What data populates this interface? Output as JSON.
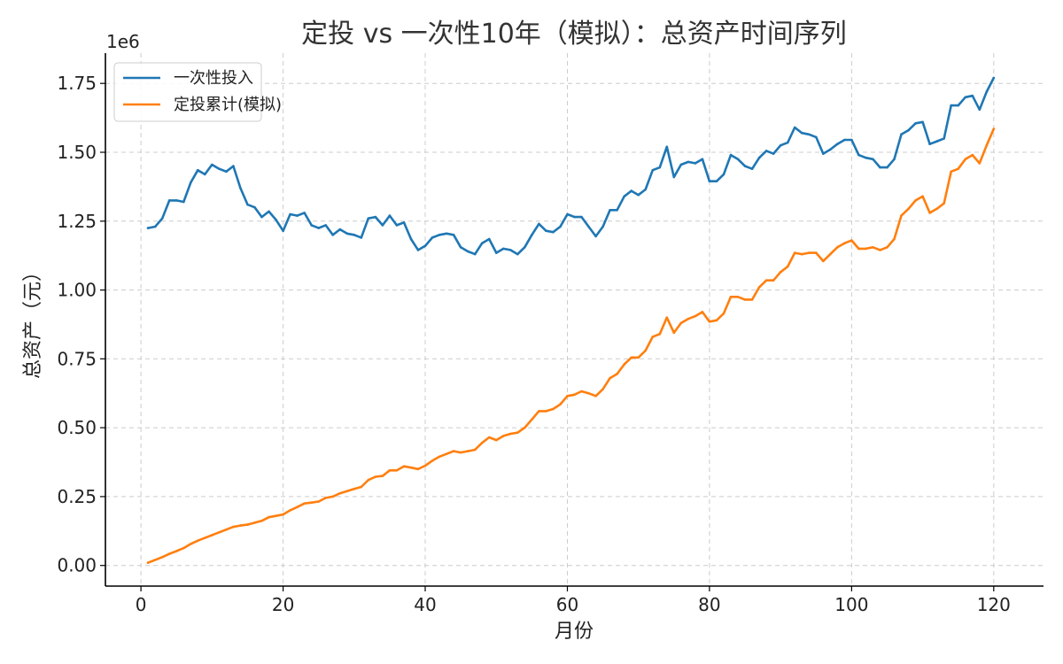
{
  "chart_data": {
    "type": "line",
    "title": "定投 vs 一次性10年（模拟）：总资产时间序列",
    "xlabel": "月份",
    "ylabel": "总资产（元）",
    "offset_text": "1e6",
    "xlim": [
      -5,
      127
    ],
    "ylim": [
      -0.075,
      1.86
    ],
    "xticks": [
      0,
      20,
      40,
      60,
      80,
      100,
      120
    ],
    "xtick_labels": [
      "0",
      "20",
      "40",
      "60",
      "80",
      "100",
      "120"
    ],
    "yticks": [
      0,
      0.25,
      0.5,
      0.75,
      1.0,
      1.25,
      1.5,
      1.75
    ],
    "ytick_labels": [
      "0.00",
      "0.25",
      "0.50",
      "0.75",
      "1.00",
      "1.25",
      "1.50",
      "1.75"
    ],
    "grid": true,
    "legend_position": "top-left",
    "x": [
      1,
      2,
      3,
      4,
      5,
      6,
      7,
      8,
      9,
      10,
      11,
      12,
      13,
      14,
      15,
      16,
      17,
      18,
      19,
      20,
      21,
      22,
      23,
      24,
      25,
      26,
      27,
      28,
      29,
      30,
      31,
      32,
      33,
      34,
      35,
      36,
      37,
      38,
      39,
      40,
      41,
      42,
      43,
      44,
      45,
      46,
      47,
      48,
      49,
      50,
      51,
      52,
      53,
      54,
      55,
      56,
      57,
      58,
      59,
      60,
      61,
      62,
      63,
      64,
      65,
      66,
      67,
      68,
      69,
      70,
      71,
      72,
      73,
      74,
      75,
      76,
      77,
      78,
      79,
      80,
      81,
      82,
      83,
      84,
      85,
      86,
      87,
      88,
      89,
      90,
      91,
      92,
      93,
      94,
      95,
      96,
      97,
      98,
      99,
      100,
      101,
      102,
      103,
      104,
      105,
      106,
      107,
      108,
      109,
      110,
      111,
      112,
      113,
      114,
      115,
      116,
      117,
      118,
      119,
      120
    ],
    "series": [
      {
        "name": "一次性投入",
        "color": "#1f77b4",
        "values": [
          1.225,
          1.23,
          1.26,
          1.325,
          1.325,
          1.32,
          1.39,
          1.435,
          1.42,
          1.455,
          1.44,
          1.43,
          1.45,
          1.37,
          1.31,
          1.3,
          1.265,
          1.285,
          1.255,
          1.215,
          1.275,
          1.27,
          1.28,
          1.235,
          1.225,
          1.235,
          1.2,
          1.22,
          1.205,
          1.2,
          1.19,
          1.26,
          1.265,
          1.235,
          1.27,
          1.235,
          1.245,
          1.185,
          1.145,
          1.16,
          1.19,
          1.2,
          1.205,
          1.2,
          1.155,
          1.14,
          1.13,
          1.17,
          1.185,
          1.135,
          1.15,
          1.145,
          1.13,
          1.155,
          1.2,
          1.24,
          1.215,
          1.21,
          1.23,
          1.275,
          1.265,
          1.265,
          1.23,
          1.195,
          1.23,
          1.29,
          1.29,
          1.34,
          1.36,
          1.345,
          1.365,
          1.435,
          1.445,
          1.52,
          1.41,
          1.455,
          1.465,
          1.46,
          1.475,
          1.395,
          1.395,
          1.42,
          1.49,
          1.475,
          1.45,
          1.44,
          1.48,
          1.505,
          1.495,
          1.525,
          1.535,
          1.59,
          1.57,
          1.565,
          1.555,
          1.495,
          1.51,
          1.53,
          1.545,
          1.545,
          1.49,
          1.48,
          1.475,
          1.445,
          1.445,
          1.475,
          1.565,
          1.58,
          1.605,
          1.61,
          1.53,
          1.54,
          1.55,
          1.67,
          1.67,
          1.7,
          1.705,
          1.655,
          1.72,
          1.77
        ]
      },
      {
        "name": "定投累计(模拟)",
        "color": "#ff7f0e",
        "values": [
          0.01,
          0.02,
          0.03,
          0.042,
          0.052,
          0.063,
          0.078,
          0.09,
          0.1,
          0.11,
          0.12,
          0.13,
          0.14,
          0.145,
          0.148,
          0.155,
          0.162,
          0.175,
          0.18,
          0.185,
          0.2,
          0.212,
          0.225,
          0.228,
          0.232,
          0.245,
          0.25,
          0.262,
          0.27,
          0.278,
          0.285,
          0.31,
          0.322,
          0.325,
          0.345,
          0.345,
          0.36,
          0.355,
          0.35,
          0.362,
          0.38,
          0.395,
          0.405,
          0.415,
          0.41,
          0.415,
          0.42,
          0.445,
          0.465,
          0.455,
          0.47,
          0.478,
          0.482,
          0.5,
          0.53,
          0.56,
          0.56,
          0.568,
          0.585,
          0.615,
          0.62,
          0.632,
          0.625,
          0.615,
          0.64,
          0.68,
          0.695,
          0.73,
          0.755,
          0.755,
          0.78,
          0.83,
          0.84,
          0.9,
          0.845,
          0.88,
          0.895,
          0.905,
          0.92,
          0.885,
          0.89,
          0.915,
          0.975,
          0.975,
          0.965,
          0.965,
          1.01,
          1.035,
          1.035,
          1.065,
          1.085,
          1.135,
          1.13,
          1.135,
          1.135,
          1.105,
          1.13,
          1.155,
          1.17,
          1.18,
          1.15,
          1.15,
          1.155,
          1.145,
          1.155,
          1.185,
          1.27,
          1.295,
          1.325,
          1.34,
          1.28,
          1.295,
          1.315,
          1.43,
          1.44,
          1.475,
          1.49,
          1.46,
          1.525,
          1.585
        ]
      }
    ]
  }
}
